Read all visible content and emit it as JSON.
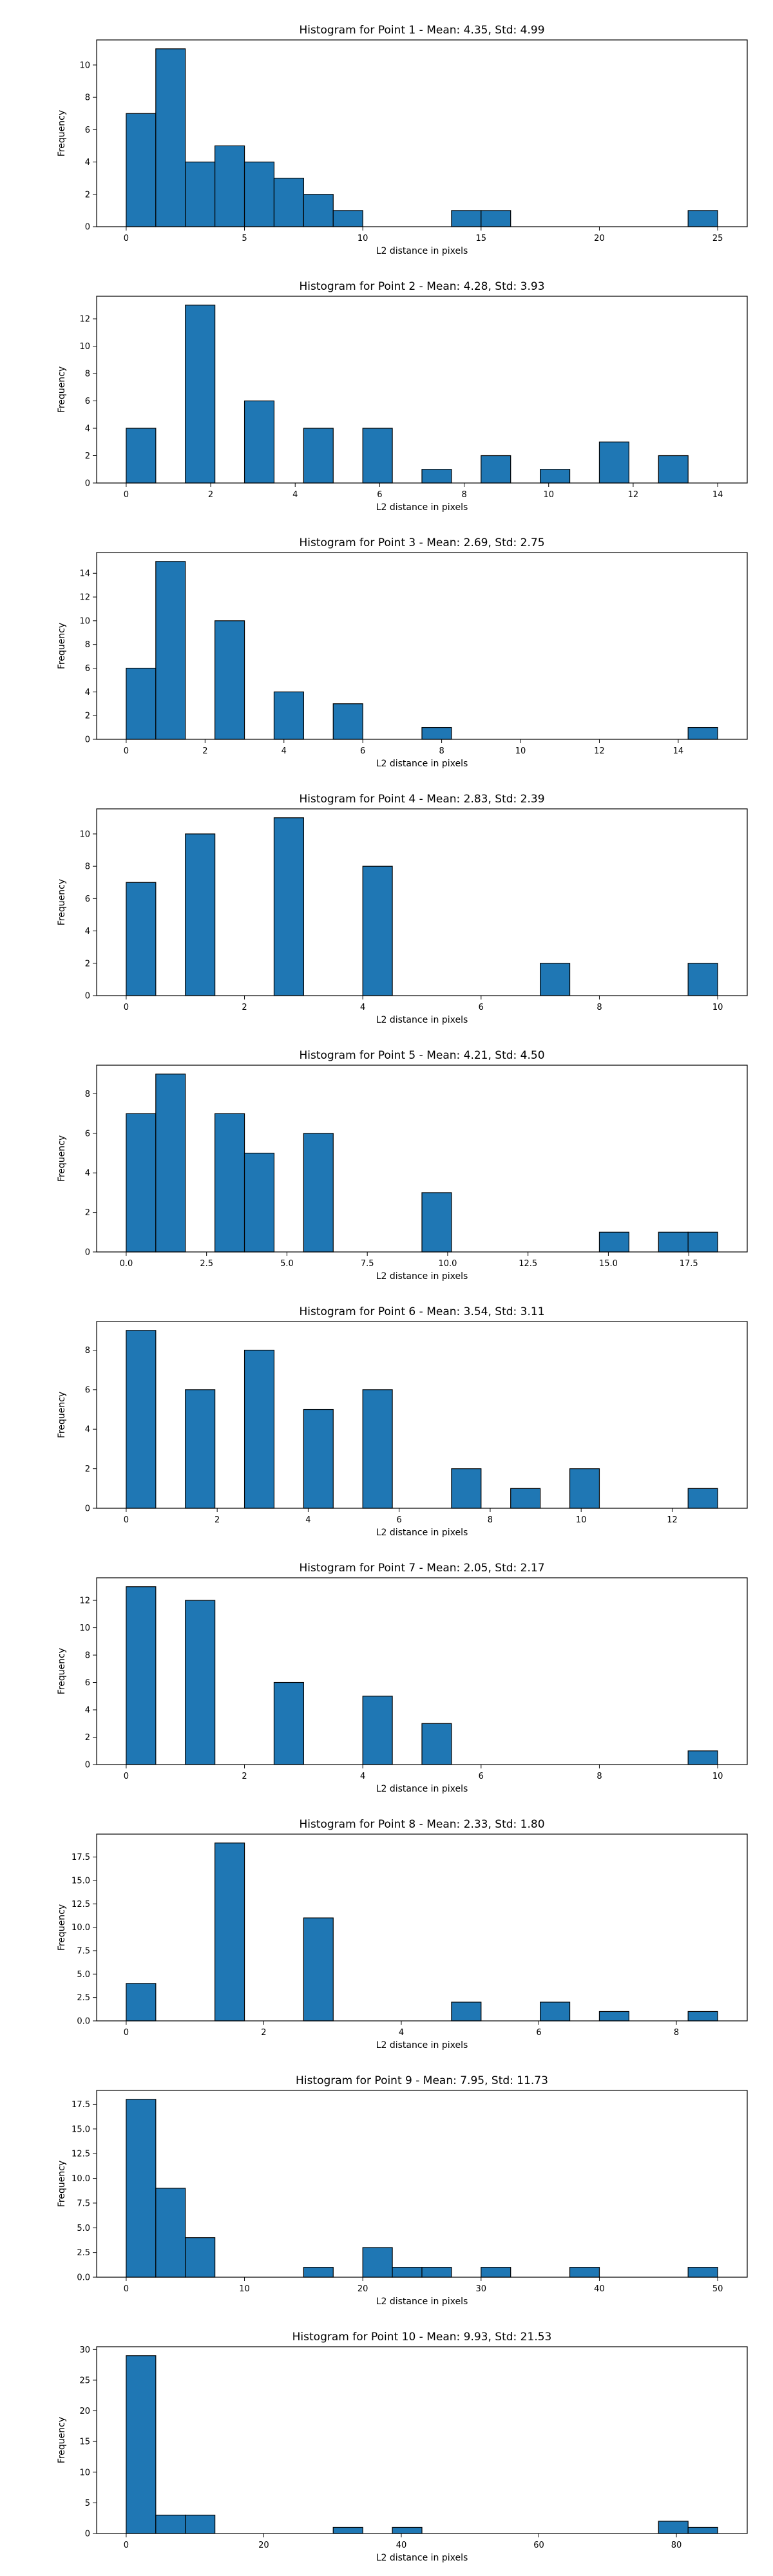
{
  "colors": {
    "bar": "#1f77b4",
    "edge": "#000000",
    "axis": "#000000",
    "background": "#ffffff"
  },
  "chart_data": [
    {
      "type": "bar",
      "subtype": "histogram",
      "title": "Histogram for Point 1 - Mean: 4.35, Std: 4.99",
      "xlabel": "L2 distance in pixels",
      "ylabel": "Frequency",
      "xlim": [
        -1.25,
        26.25
      ],
      "ylim": [
        0,
        11.55
      ],
      "xticks": [
        0,
        5,
        10,
        15,
        20,
        25
      ],
      "xtick_labels": [
        "0",
        "5",
        "10",
        "15",
        "20",
        "25"
      ],
      "yticks": [
        0,
        2,
        4,
        6,
        8,
        10
      ],
      "ytick_labels": [
        "0",
        "2",
        "4",
        "6",
        "8",
        "10"
      ],
      "grid": false,
      "legend": "none",
      "bins": [
        0,
        1.25,
        2.5,
        3.75,
        5,
        6.25,
        7.5,
        8.75,
        10,
        11.25,
        12.5,
        13.75,
        15,
        16.25,
        17.5,
        18.75,
        20,
        21.25,
        22.5,
        23.75,
        25
      ],
      "counts": [
        7,
        11,
        4,
        5,
        4,
        3,
        2,
        1,
        0,
        0,
        0,
        1,
        1,
        0,
        0,
        0,
        0,
        0,
        0,
        1
      ]
    },
    {
      "type": "bar",
      "subtype": "histogram",
      "title": "Histogram for Point 2 - Mean: 4.28, Std: 3.93",
      "xlabel": "L2 distance in pixels",
      "ylabel": "Frequency",
      "xlim": [
        -0.7,
        14.7
      ],
      "ylim": [
        0,
        13.65
      ],
      "xticks": [
        0,
        2,
        4,
        6,
        8,
        10,
        12,
        14
      ],
      "xtick_labels": [
        "0",
        "2",
        "4",
        "6",
        "8",
        "10",
        "12",
        "14"
      ],
      "yticks": [
        0,
        2,
        4,
        6,
        8,
        10,
        12
      ],
      "ytick_labels": [
        "0",
        "2",
        "4",
        "6",
        "8",
        "10",
        "12"
      ],
      "grid": false,
      "legend": "none",
      "bins": [
        0,
        0.7,
        1.4,
        2.1,
        2.8,
        3.5,
        4.2,
        4.9,
        5.6,
        6.3,
        7.0,
        7.7,
        8.4,
        9.1,
        9.8,
        10.5,
        11.2,
        11.9,
        12.6,
        13.3,
        14.0
      ],
      "counts": [
        4,
        0,
        13,
        0,
        6,
        0,
        4,
        0,
        4,
        0,
        1,
        0,
        2,
        0,
        1,
        0,
        3,
        0,
        2,
        0
      ]
    },
    {
      "type": "bar",
      "subtype": "histogram",
      "title": "Histogram for Point 3 - Mean: 2.69, Std: 2.75",
      "xlabel": "L2 distance in pixels",
      "ylabel": "Frequency",
      "xlim": [
        -0.75,
        15.75
      ],
      "ylim": [
        0,
        15.75
      ],
      "xticks": [
        0,
        2,
        4,
        6,
        8,
        10,
        12,
        14
      ],
      "xtick_labels": [
        "0",
        "2",
        "4",
        "6",
        "8",
        "10",
        "12",
        "14"
      ],
      "yticks": [
        0,
        2,
        4,
        6,
        8,
        10,
        12,
        14
      ],
      "ytick_labels": [
        "0",
        "2",
        "4",
        "6",
        "8",
        "10",
        "12",
        "14"
      ],
      "grid": false,
      "legend": "none",
      "bins": [
        0,
        0.75,
        1.5,
        2.25,
        3.0,
        3.75,
        4.5,
        5.25,
        6.0,
        6.75,
        7.5,
        8.25,
        9.0,
        9.75,
        10.5,
        11.25,
        12.0,
        12.75,
        13.5,
        14.25,
        15.0
      ],
      "counts": [
        6,
        15,
        0,
        10,
        0,
        4,
        0,
        3,
        0,
        0,
        1,
        0,
        0,
        0,
        0,
        0,
        0,
        0,
        0,
        1
      ]
    },
    {
      "type": "bar",
      "subtype": "histogram",
      "title": "Histogram for Point 4 - Mean: 2.83, Std: 2.39",
      "xlabel": "L2 distance in pixels",
      "ylabel": "Frequency",
      "xlim": [
        -0.5,
        10.5
      ],
      "ylim": [
        0,
        11.55
      ],
      "xticks": [
        0,
        2,
        4,
        6,
        8,
        10
      ],
      "xtick_labels": [
        "0",
        "2",
        "4",
        "6",
        "8",
        "10"
      ],
      "yticks": [
        0,
        2,
        4,
        6,
        8,
        10
      ],
      "ytick_labels": [
        "0",
        "2",
        "4",
        "6",
        "8",
        "10"
      ],
      "grid": false,
      "legend": "none",
      "bins": [
        0,
        0.5,
        1.0,
        1.5,
        2.0,
        2.5,
        3.0,
        3.5,
        4.0,
        4.5,
        5.0,
        5.5,
        6.0,
        6.5,
        7.0,
        7.5,
        8.0,
        8.5,
        9.0,
        9.5,
        10.0
      ],
      "counts": [
        7,
        0,
        10,
        0,
        0,
        11,
        0,
        0,
        8,
        0,
        0,
        0,
        0,
        0,
        2,
        0,
        0,
        0,
        0,
        2
      ]
    },
    {
      "type": "bar",
      "subtype": "histogram",
      "title": "Histogram for Point 5 - Mean: 4.21, Std: 4.50",
      "xlabel": "L2 distance in pixels",
      "ylabel": "Frequency",
      "xlim": [
        -0.92,
        19.32
      ],
      "ylim": [
        0,
        9.45
      ],
      "xticks": [
        0,
        2.5,
        5,
        7.5,
        10,
        12.5,
        15,
        17.5
      ],
      "xtick_labels": [
        "0.0",
        "2.5",
        "5.0",
        "7.5",
        "10.0",
        "12.5",
        "15.0",
        "17.5"
      ],
      "yticks": [
        0,
        2,
        4,
        6,
        8
      ],
      "ytick_labels": [
        "0",
        "2",
        "4",
        "6",
        "8"
      ],
      "grid": false,
      "legend": "none",
      "bins": [
        0,
        0.92,
        1.84,
        2.76,
        3.68,
        4.6,
        5.52,
        6.44,
        7.36,
        8.28,
        9.2,
        10.12,
        11.04,
        11.96,
        12.88,
        13.8,
        14.72,
        15.64,
        16.56,
        17.48,
        18.4
      ],
      "counts": [
        7,
        9,
        0,
        7,
        5,
        0,
        6,
        0,
        0,
        0,
        3,
        0,
        0,
        0,
        0,
        0,
        1,
        0,
        1,
        1
      ]
    },
    {
      "type": "bar",
      "subtype": "histogram",
      "title": "Histogram for Point 6 - Mean: 3.54, Std: 3.11",
      "xlabel": "L2 distance in pixels",
      "ylabel": "Frequency",
      "xlim": [
        -0.65,
        13.65
      ],
      "ylim": [
        0,
        9.45
      ],
      "xticks": [
        0,
        2,
        4,
        6,
        8,
        10,
        12
      ],
      "xtick_labels": [
        "0",
        "2",
        "4",
        "6",
        "8",
        "10",
        "12"
      ],
      "yticks": [
        0,
        2,
        4,
        6,
        8
      ],
      "ytick_labels": [
        "0",
        "2",
        "4",
        "6",
        "8"
      ],
      "grid": false,
      "legend": "none",
      "bins": [
        0,
        0.65,
        1.3,
        1.95,
        2.6,
        3.25,
        3.9,
        4.55,
        5.2,
        5.85,
        6.5,
        7.15,
        7.8,
        8.45,
        9.1,
        9.75,
        10.4,
        11.05,
        11.7,
        12.35,
        13.0
      ],
      "counts": [
        9,
        0,
        6,
        0,
        8,
        0,
        5,
        0,
        6,
        0,
        0,
        2,
        0,
        1,
        0,
        2,
        0,
        0,
        0,
        1
      ]
    },
    {
      "type": "bar",
      "subtype": "histogram",
      "title": "Histogram for Point 7 - Mean: 2.05, Std: 2.17",
      "xlabel": "L2 distance in pixels",
      "ylabel": "Frequency",
      "xlim": [
        -0.5,
        10.5
      ],
      "ylim": [
        0,
        13.65
      ],
      "xticks": [
        0,
        2,
        4,
        6,
        8,
        10
      ],
      "xtick_labels": [
        "0",
        "2",
        "4",
        "6",
        "8",
        "10"
      ],
      "yticks": [
        0,
        2,
        4,
        6,
        8,
        10,
        12
      ],
      "ytick_labels": [
        "0",
        "2",
        "4",
        "6",
        "8",
        "10",
        "12"
      ],
      "grid": false,
      "legend": "none",
      "bins": [
        0,
        0.5,
        1.0,
        1.5,
        2.0,
        2.5,
        3.0,
        3.5,
        4.0,
        4.5,
        5.0,
        5.5,
        6.0,
        6.5,
        7.0,
        7.5,
        8.0,
        8.5,
        9.0,
        9.5,
        10.0
      ],
      "counts": [
        13,
        0,
        12,
        0,
        0,
        6,
        0,
        0,
        5,
        0,
        3,
        0,
        0,
        0,
        0,
        0,
        0,
        0,
        0,
        1
      ]
    },
    {
      "type": "bar",
      "subtype": "histogram",
      "title": "Histogram for Point 8 - Mean: 2.33, Std: 1.80",
      "xlabel": "L2 distance in pixels",
      "ylabel": "Frequency",
      "xlim": [
        -0.43,
        9.03
      ],
      "ylim": [
        0,
        19.95
      ],
      "xticks": [
        0,
        2,
        4,
        6,
        8
      ],
      "xtick_labels": [
        "0",
        "2",
        "4",
        "6",
        "8"
      ],
      "yticks": [
        0,
        2.5,
        5,
        7.5,
        10,
        12.5,
        15,
        17.5
      ],
      "ytick_labels": [
        "0.0",
        "2.5",
        "5.0",
        "7.5",
        "10.0",
        "12.5",
        "15.0",
        "17.5"
      ],
      "grid": false,
      "legend": "none",
      "bins": [
        0,
        0.43,
        0.86,
        1.29,
        1.72,
        2.15,
        2.58,
        3.01,
        3.44,
        3.87,
        4.3,
        4.73,
        5.16,
        5.59,
        6.02,
        6.45,
        6.88,
        7.31,
        7.74,
        8.17,
        8.6
      ],
      "counts": [
        4,
        0,
        0,
        19,
        0,
        0,
        11,
        0,
        0,
        0,
        0,
        2,
        0,
        0,
        2,
        0,
        1,
        0,
        0,
        1
      ]
    },
    {
      "type": "bar",
      "subtype": "histogram",
      "title": "Histogram for Point 9 - Mean: 7.95, Std: 11.73",
      "xlabel": "L2 distance in pixels",
      "ylabel": "Frequency",
      "xlim": [
        -2.5,
        52.5
      ],
      "ylim": [
        0,
        18.9
      ],
      "xticks": [
        0,
        10,
        20,
        30,
        40,
        50
      ],
      "xtick_labels": [
        "0",
        "10",
        "20",
        "30",
        "40",
        "50"
      ],
      "yticks": [
        0,
        2.5,
        5,
        7.5,
        10,
        12.5,
        15,
        17.5
      ],
      "ytick_labels": [
        "0.0",
        "2.5",
        "5.0",
        "7.5",
        "10.0",
        "12.5",
        "15.0",
        "17.5"
      ],
      "grid": false,
      "legend": "none",
      "bins": [
        0,
        2.5,
        5,
        7.5,
        10,
        12.5,
        15,
        17.5,
        20,
        22.5,
        25,
        27.5,
        30,
        32.5,
        35,
        37.5,
        40,
        42.5,
        45,
        47.5,
        50
      ],
      "counts": [
        18,
        9,
        4,
        0,
        0,
        0,
        1,
        0,
        3,
        1,
        1,
        0,
        1,
        0,
        0,
        1,
        0,
        0,
        0,
        1
      ]
    },
    {
      "type": "bar",
      "subtype": "histogram",
      "title": "Histogram for Point 10 - Mean: 9.93, Std: 21.53",
      "xlabel": "L2 distance in pixels",
      "ylabel": "Frequency",
      "xlim": [
        -4.3,
        90.3
      ],
      "ylim": [
        0,
        30.45
      ],
      "xticks": [
        0,
        20,
        40,
        60,
        80
      ],
      "xtick_labels": [
        "0",
        "20",
        "40",
        "60",
        "80"
      ],
      "yticks": [
        0,
        5,
        10,
        15,
        20,
        25,
        30
      ],
      "ytick_labels": [
        "0",
        "5",
        "10",
        "15",
        "20",
        "25",
        "30"
      ],
      "grid": false,
      "legend": "none",
      "bins": [
        0,
        4.3,
        8.6,
        12.9,
        17.2,
        21.5,
        25.8,
        30.1,
        34.4,
        38.7,
        43.0,
        47.3,
        51.6,
        55.9,
        60.2,
        64.5,
        68.8,
        73.1,
        77.4,
        81.7,
        86.0
      ],
      "counts": [
        29,
        3,
        3,
        0,
        0,
        0,
        0,
        1,
        0,
        1,
        0,
        0,
        0,
        0,
        0,
        0,
        0,
        0,
        2,
        1
      ]
    }
  ]
}
